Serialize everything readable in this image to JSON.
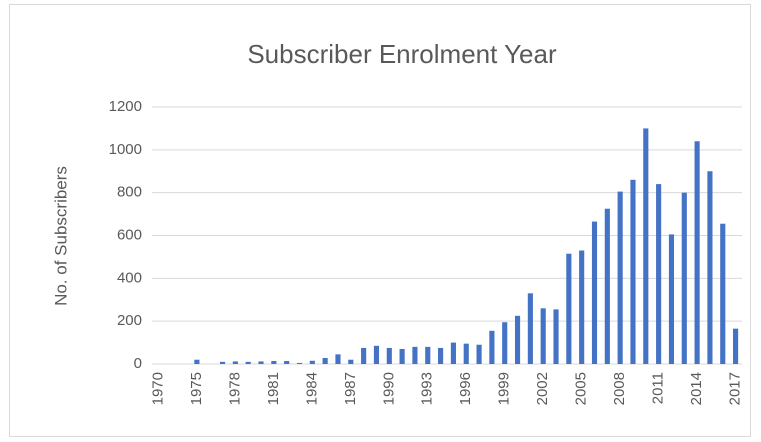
{
  "chart_data": {
    "type": "bar",
    "title": "Subscriber Enrolment Year",
    "y_label": "No. of Subscribers",
    "categories": [
      "1970",
      null,
      null,
      "1975",
      null,
      null,
      "1978",
      null,
      null,
      "1981",
      null,
      null,
      "1984",
      null,
      null,
      "1987",
      null,
      null,
      "1990",
      null,
      null,
      "1993",
      null,
      null,
      "1996",
      null,
      null,
      "1999",
      null,
      null,
      "2002",
      null,
      null,
      "2005",
      null,
      null,
      "2008",
      null,
      null,
      "2011",
      null,
      null,
      "2014",
      null,
      null,
      "2017"
    ],
    "values": [
      0,
      0,
      0,
      20,
      0,
      10,
      12,
      10,
      12,
      14,
      14,
      5,
      15,
      28,
      45,
      20,
      75,
      85,
      75,
      70,
      80,
      80,
      75,
      100,
      95,
      90,
      155,
      195,
      225,
      330,
      260,
      255,
      515,
      530,
      665,
      725,
      805,
      860,
      1100,
      840,
      605,
      800,
      1040,
      900,
      655,
      165
    ],
    "color": "#4472c4",
    "ylim": [
      0,
      1200
    ],
    "yticks": [
      0,
      200,
      400,
      600,
      800,
      1000,
      1200
    ],
    "grid": true
  }
}
